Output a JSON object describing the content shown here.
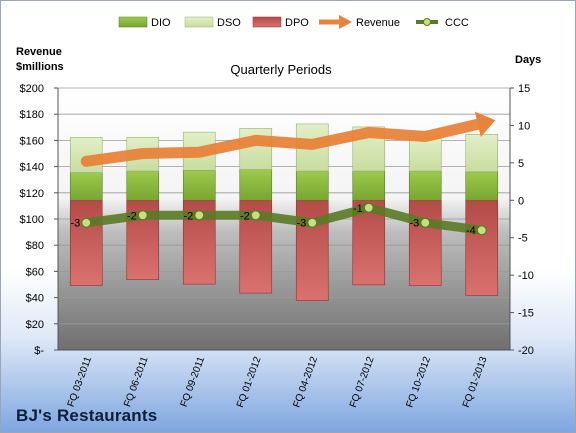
{
  "company": "BJ's Restaurants",
  "chart_data": {
    "type": "bar",
    "title": "Quarterly Periods",
    "left_axis_label_line1": "Revenue",
    "left_axis_label_line2": "$millions",
    "right_axis_label": "Days",
    "categories": [
      "FQ 03-2011",
      "FQ 06-2011",
      "FQ 09-2011",
      "FQ 01-2012",
      "FQ 04-2012",
      "FQ 07-2012",
      "FQ 10-2012",
      "FQ 01-2013"
    ],
    "left_axis": {
      "min": 0,
      "max": 200,
      "step": 20,
      "tick_labels": [
        "$-",
        "$20",
        "$40",
        "$60",
        "$80",
        "$100",
        "$120",
        "$140",
        "$160",
        "$180",
        "$200"
      ]
    },
    "right_axis": {
      "min": -20,
      "max": 15,
      "step": 5,
      "tick_labels": [
        "-20",
        "-15",
        "-10",
        "-5",
        "0",
        "5",
        "10",
        "15"
      ]
    },
    "grid": true,
    "legend_position": "top",
    "series": [
      {
        "name": "DIO",
        "type": "stacked-bar",
        "axis": "right",
        "color": "#8fbf3e",
        "values": [
          3.7,
          3.9,
          4.0,
          4.1,
          3.9,
          3.9,
          3.9,
          3.8
        ]
      },
      {
        "name": "DSO",
        "type": "stacked-bar",
        "axis": "right",
        "color": "#d6e8b4",
        "values": [
          4.7,
          4.5,
          5.1,
          5.5,
          6.3,
          5.9,
          4.6,
          5.0
        ]
      },
      {
        "name": "DPO",
        "type": "stacked-bar",
        "axis": "right",
        "color": "#c0504d",
        "values": [
          -11.4,
          -10.6,
          -11.2,
          -12.4,
          -13.4,
          -11.3,
          -11.4,
          -12.7
        ]
      },
      {
        "name": "Revenue",
        "type": "line",
        "axis": "left",
        "color": "#e8833a",
        "values": [
          144,
          150,
          151,
          160,
          157,
          166,
          163,
          173
        ]
      },
      {
        "name": "CCC",
        "type": "line",
        "axis": "right",
        "color": "#5a7b24",
        "values": [
          -3,
          -2,
          -2,
          -2,
          -3,
          -1,
          -3,
          -4
        ]
      }
    ],
    "data_labels": [
      "-3",
      "-2",
      "-2",
      "-2",
      "-3",
      "-1",
      "-3",
      "-4"
    ]
  }
}
